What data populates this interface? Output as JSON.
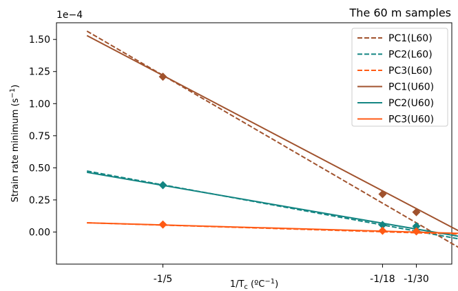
{
  "chart_data": {
    "type": "line",
    "title": "The 60 m samples",
    "xlabel_main": "1/T",
    "xlabel_sub": "c",
    "xlabel_units": " (ºC",
    "xlabel_sup": "−1",
    "xlabel_close": ")",
    "ylabel_main": "Strain rate minimum (s",
    "ylabel_sup": "−1",
    "ylabel_close": ")",
    "y_offset_label": "1e−4",
    "xlim": [
      -0.27,
      -0.01
    ],
    "ylim": [
      -2.5e-05,
      0.000163
    ],
    "grid": false,
    "legend_position": "top-right",
    "x_ticks": [
      {
        "value": -0.2,
        "label": "-1/5"
      },
      {
        "value": -0.055556,
        "label": "-1/18"
      },
      {
        "value": -0.033333,
        "label": "-1/30"
      }
    ],
    "y_ticks": [
      {
        "value": 0.0,
        "label": "0.00"
      },
      {
        "value": 2.5e-05,
        "label": "0.25"
      },
      {
        "value": 5e-05,
        "label": "0.50"
      },
      {
        "value": 7.5e-05,
        "label": "0.75"
      },
      {
        "value": 0.0001,
        "label": "1.00"
      },
      {
        "value": 0.000125,
        "label": "1.25"
      },
      {
        "value": 0.00015,
        "label": "1.50"
      }
    ],
    "points": [
      {
        "color": "#a0522d",
        "x": [
          -0.2,
          -0.055556,
          -0.033333
        ],
        "y": [
          0.000121,
          2.95e-05,
          1.55e-05
        ]
      },
      {
        "color": "#138582",
        "x": [
          -0.2,
          -0.055556,
          -0.033333
        ],
        "y": [
          3.65e-05,
          5.5e-06,
          4.5e-06
        ]
      },
      {
        "color": "#ff5a14",
        "x": [
          -0.2,
          -0.055556,
          -0.033333
        ],
        "y": [
          5.8e-06,
          1e-06,
          5e-07
        ]
      }
    ],
    "series": [
      {
        "name": "PC1(L60)",
        "color": "#a0522d",
        "style": "dashed",
        "x": [
          -0.25,
          0.0
        ],
        "y": [
          0.0001565,
          -1.58e-05
        ]
      },
      {
        "name": "PC2(L60)",
        "color": "#138582",
        "style": "dashed",
        "x": [
          -0.25,
          0.0
        ],
        "y": [
          4.75e-05,
          -6.5e-06
        ]
      },
      {
        "name": "PC3(L60)",
        "color": "#ff5a14",
        "style": "dashed",
        "x": [
          -0.25,
          0.0
        ],
        "y": [
          7.2e-06,
          -1.8e-06
        ]
      },
      {
        "name": "PC1(U60)",
        "color": "#a0522d",
        "style": "solid",
        "x": [
          -0.25,
          0.0
        ],
        "y": [
          0.000153,
          -2.5e-06
        ]
      },
      {
        "name": "PC2(U60)",
        "color": "#138582",
        "style": "solid",
        "x": [
          -0.25,
          0.0
        ],
        "y": [
          4.65e-05,
          -4.5e-06
        ]
      },
      {
        "name": "PC3(U60)",
        "color": "#ff5a14",
        "style": "solid",
        "x": [
          -0.25,
          0.0
        ],
        "y": [
          7.2e-06,
          -1.2e-06
        ]
      }
    ]
  }
}
